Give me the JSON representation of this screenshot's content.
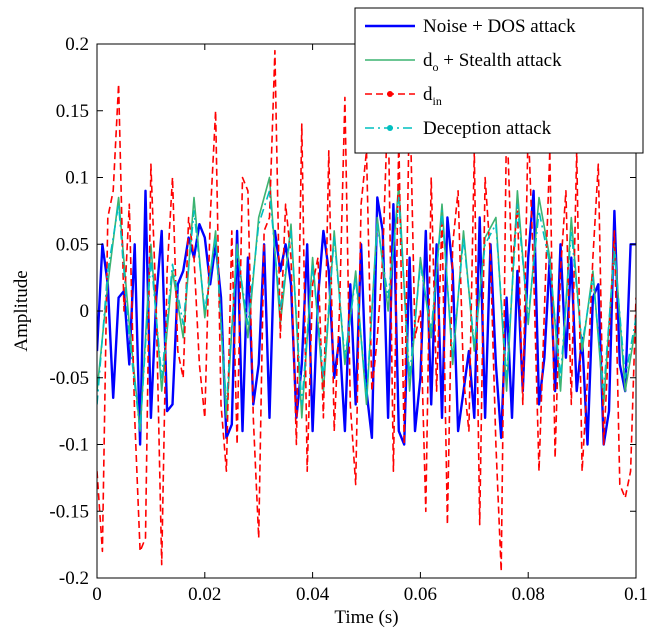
{
  "chart_data": {
    "type": "line",
    "title": "",
    "xlabel": "Time (s)",
    "ylabel": "Amplitude",
    "xlim": [
      0,
      0.1
    ],
    "ylim": [
      -0.2,
      0.2
    ],
    "xticks": [
      0,
      0.02,
      0.04,
      0.06,
      0.08,
      0.1
    ],
    "xtick_labels": [
      "0",
      "0.02",
      "0.04",
      "0.06",
      "0.08",
      "0.1"
    ],
    "yticks": [
      -0.2,
      -0.15,
      -0.1,
      -0.05,
      0,
      0.05,
      0.1,
      0.15,
      0.2
    ],
    "ytick_labels": [
      "-0.2",
      "-0.15",
      "-0.1",
      "-0.05",
      "0",
      "0.05",
      "0.1",
      "0.15",
      "0.2"
    ],
    "grid": false,
    "legend_position": "top-right",
    "legend": [
      {
        "main": "Noise + DOS attack",
        "sub": "",
        "rest": ""
      },
      {
        "main": "d",
        "sub": "o",
        "rest": " + Stealth attack"
      },
      {
        "main": "d",
        "sub": "in",
        "rest": ""
      },
      {
        "main": "Deception attack",
        "sub": "",
        "rest": ""
      }
    ],
    "series": [
      {
        "name": "Noise + DOS attack",
        "color": "#0000ff",
        "style": "solid",
        "marker": "none",
        "x": [
          0,
          0.001,
          0.002,
          0.003,
          0.004,
          0.005,
          0.006,
          0.007,
          0.008,
          0.009,
          0.01,
          0.011,
          0.012,
          0.013,
          0.014,
          0.015,
          0.016,
          0.017,
          0.018,
          0.019,
          0.02,
          0.021,
          0.022,
          0.023,
          0.024,
          0.025,
          0.026,
          0.027,
          0.028,
          0.029,
          0.03,
          0.031,
          0.032,
          0.033,
          0.034,
          0.035,
          0.036,
          0.037,
          0.038,
          0.039,
          0.04,
          0.041,
          0.042,
          0.043,
          0.044,
          0.045,
          0.046,
          0.047,
          0.048,
          0.049,
          0.05,
          0.051,
          0.052,
          0.053,
          0.054,
          0.055,
          0.056,
          0.057,
          0.058,
          0.059,
          0.06,
          0.061,
          0.062,
          0.063,
          0.064,
          0.065,
          0.066,
          0.067,
          0.068,
          0.069,
          0.07,
          0.071,
          0.072,
          0.073,
          0.074,
          0.075,
          0.076,
          0.077,
          0.078,
          0.079,
          0.08,
          0.081,
          0.082,
          0.083,
          0.084,
          0.085,
          0.086,
          0.087,
          0.088,
          0.089,
          0.09,
          0.091,
          0.092,
          0.093,
          0.094,
          0.095,
          0.096,
          0.097,
          0.098,
          0.099,
          0.1
        ],
        "y": [
          -0.03,
          0.05,
          0.02,
          -0.065,
          0.01,
          0.015,
          -0.04,
          0.05,
          -0.1,
          0.09,
          -0.08,
          0.01,
          0.06,
          -0.075,
          -0.07,
          0.02,
          0.03,
          0.055,
          0.04,
          0.065,
          0.055,
          0.02,
          0.05,
          0.01,
          -0.095,
          -0.085,
          0.06,
          -0.09,
          0.04,
          -0.07,
          -0.04,
          0.05,
          -0.08,
          0.06,
          0.03,
          0.05,
          0.02,
          -0.08,
          -0.04,
          0.05,
          -0.09,
          0.01,
          0.06,
          0.03,
          -0.05,
          -0.02,
          -0.09,
          0.02,
          -0.07,
          0.05,
          -0.06,
          -0.095,
          0.085,
          0.06,
          -0.08,
          0.08,
          -0.09,
          -0.1,
          0.04,
          -0.09,
          -0.05,
          0.06,
          -0.07,
          0.05,
          -0.08,
          0.07,
          0.03,
          -0.09,
          -0.06,
          -0.03,
          -0.08,
          0.07,
          -0.08,
          0.05,
          -0.04,
          -0.095,
          0.01,
          -0.08,
          0.03,
          -0.06,
          0.04,
          0.09,
          -0.07,
          -0.035,
          0.04,
          -0.06,
          0.05,
          -0.035,
          0.04,
          -0.06,
          -0.02,
          -0.1,
          0.01,
          0.02,
          -0.1,
          -0.075,
          0.075,
          -0.04,
          -0.06,
          0.05,
          0.05
        ]
      },
      {
        "name": "d_o + Stealth attack",
        "color": "#3cb371",
        "style": "solid",
        "marker": "none",
        "x": [
          0,
          0.002,
          0.004,
          0.006,
          0.008,
          0.01,
          0.012,
          0.014,
          0.016,
          0.018,
          0.02,
          0.022,
          0.024,
          0.026,
          0.028,
          0.03,
          0.032,
          0.034,
          0.036,
          0.038,
          0.04,
          0.042,
          0.044,
          0.046,
          0.048,
          0.05,
          0.052,
          0.054,
          0.056,
          0.058,
          0.06,
          0.062,
          0.064,
          0.066,
          0.068,
          0.07,
          0.072,
          0.074,
          0.076,
          0.078,
          0.08,
          0.082,
          0.084,
          0.086,
          0.088,
          0.09,
          0.092,
          0.094,
          0.096,
          0.098,
          0.1
        ],
        "y": [
          -0.06,
          0.02,
          0.085,
          -0.01,
          -0.09,
          0.05,
          -0.06,
          0.03,
          -0.02,
          0.085,
          -0.005,
          0.06,
          -0.08,
          0.05,
          -0.02,
          0.07,
          0.1,
          -0.01,
          0.065,
          -0.08,
          0.04,
          -0.06,
          0.06,
          -0.04,
          0.03,
          -0.07,
          0.07,
          0.0,
          0.095,
          -0.06,
          0.04,
          -0.02,
          0.08,
          -0.04,
          0.06,
          -0.03,
          0.055,
          0.07,
          -0.06,
          0.09,
          -0.01,
          0.085,
          0.04,
          -0.06,
          0.07,
          -0.03,
          0.03,
          -0.07,
          0.05,
          -0.06,
          -0.01
        ]
      },
      {
        "name": "d_in",
        "color": "#ff0000",
        "style": "dashed",
        "marker": "dot",
        "x": [
          0,
          0.001,
          0.002,
          0.003,
          0.004,
          0.005,
          0.006,
          0.007,
          0.008,
          0.009,
          0.01,
          0.011,
          0.012,
          0.013,
          0.014,
          0.015,
          0.016,
          0.017,
          0.018,
          0.019,
          0.02,
          0.021,
          0.022,
          0.023,
          0.024,
          0.025,
          0.026,
          0.027,
          0.028,
          0.029,
          0.03,
          0.031,
          0.032,
          0.033,
          0.034,
          0.035,
          0.036,
          0.037,
          0.038,
          0.039,
          0.04,
          0.041,
          0.042,
          0.043,
          0.044,
          0.045,
          0.046,
          0.047,
          0.048,
          0.049,
          0.05,
          0.051,
          0.052,
          0.053,
          0.054,
          0.055,
          0.056,
          0.057,
          0.058,
          0.059,
          0.06,
          0.061,
          0.062,
          0.063,
          0.064,
          0.065,
          0.066,
          0.067,
          0.068,
          0.069,
          0.07,
          0.071,
          0.072,
          0.073,
          0.074,
          0.075,
          0.076,
          0.077,
          0.078,
          0.079,
          0.08,
          0.081,
          0.082,
          0.083,
          0.084,
          0.085,
          0.086,
          0.087,
          0.088,
          0.089,
          0.09,
          0.091,
          0.092,
          0.093,
          0.094,
          0.095,
          0.096,
          0.097,
          0.098,
          0.099,
          0.1
        ],
        "y": [
          -0.12,
          -0.18,
          0.07,
          0.09,
          0.17,
          0.0,
          0.08,
          -0.08,
          -0.18,
          -0.17,
          0.11,
          0.0,
          -0.19,
          0.03,
          0.1,
          -0.03,
          -0.05,
          0.07,
          0.04,
          -0.04,
          -0.08,
          0.07,
          0.15,
          -0.07,
          -0.12,
          0.06,
          -0.1,
          0.1,
          0.09,
          -0.08,
          -0.17,
          0.06,
          0.07,
          0.195,
          -0.02,
          0.08,
          0.04,
          -0.1,
          0.14,
          -0.12,
          0.02,
          0.04,
          -0.08,
          0.12,
          -0.09,
          0.0,
          0.16,
          -0.07,
          -0.13,
          0.08,
          0.12,
          -0.06,
          -0.02,
          0.04,
          0.16,
          -0.12,
          0.13,
          -0.1,
          0.17,
          -0.02,
          0.0,
          -0.15,
          0.1,
          -0.06,
          0.07,
          -0.16,
          0.05,
          0.09,
          -0.05,
          -0.09,
          0.12,
          -0.16,
          0.1,
          0.04,
          -0.1,
          -0.195,
          0.15,
          0.03,
          0.08,
          -0.07,
          0.14,
          0.03,
          -0.12,
          0.0,
          0.12,
          -0.11,
          0.03,
          0.09,
          -0.07,
          0.12,
          -0.12,
          -0.05,
          0.04,
          0.11,
          -0.1,
          -0.02,
          0.06,
          -0.13,
          -0.14,
          -0.12,
          0.01
        ]
      },
      {
        "name": "Deception attack",
        "color": "#00bfbf",
        "style": "dashdot",
        "marker": "dot",
        "x": [
          0,
          0.002,
          0.004,
          0.006,
          0.008,
          0.01,
          0.012,
          0.014,
          0.016,
          0.018,
          0.02,
          0.022,
          0.024,
          0.026,
          0.028,
          0.03,
          0.032,
          0.034,
          0.036,
          0.038,
          0.04,
          0.042,
          0.044,
          0.046,
          0.048,
          0.05,
          0.052,
          0.054,
          0.056,
          0.058,
          0.06,
          0.062,
          0.064,
          0.066,
          0.068,
          0.07,
          0.072,
          0.074,
          0.076,
          0.078,
          0.08,
          0.082,
          0.084,
          0.086,
          0.088,
          0.09,
          0.092,
          0.094,
          0.096,
          0.098,
          0.1
        ],
        "y": [
          -0.07,
          0.03,
          0.08,
          -0.02,
          -0.09,
          0.04,
          -0.05,
          0.035,
          -0.01,
          0.075,
          0.0,
          0.055,
          -0.07,
          0.045,
          -0.01,
          0.065,
          0.09,
          0.0,
          0.06,
          -0.07,
          0.035,
          -0.05,
          0.055,
          -0.035,
          0.025,
          -0.065,
          0.065,
          0.01,
          0.085,
          -0.05,
          0.035,
          -0.015,
          0.075,
          -0.035,
          0.055,
          -0.025,
          0.05,
          0.065,
          -0.05,
          0.08,
          -0.005,
          0.075,
          0.035,
          -0.05,
          0.06,
          -0.025,
          0.025,
          -0.06,
          0.045,
          -0.05,
          -0.005
        ]
      }
    ]
  }
}
